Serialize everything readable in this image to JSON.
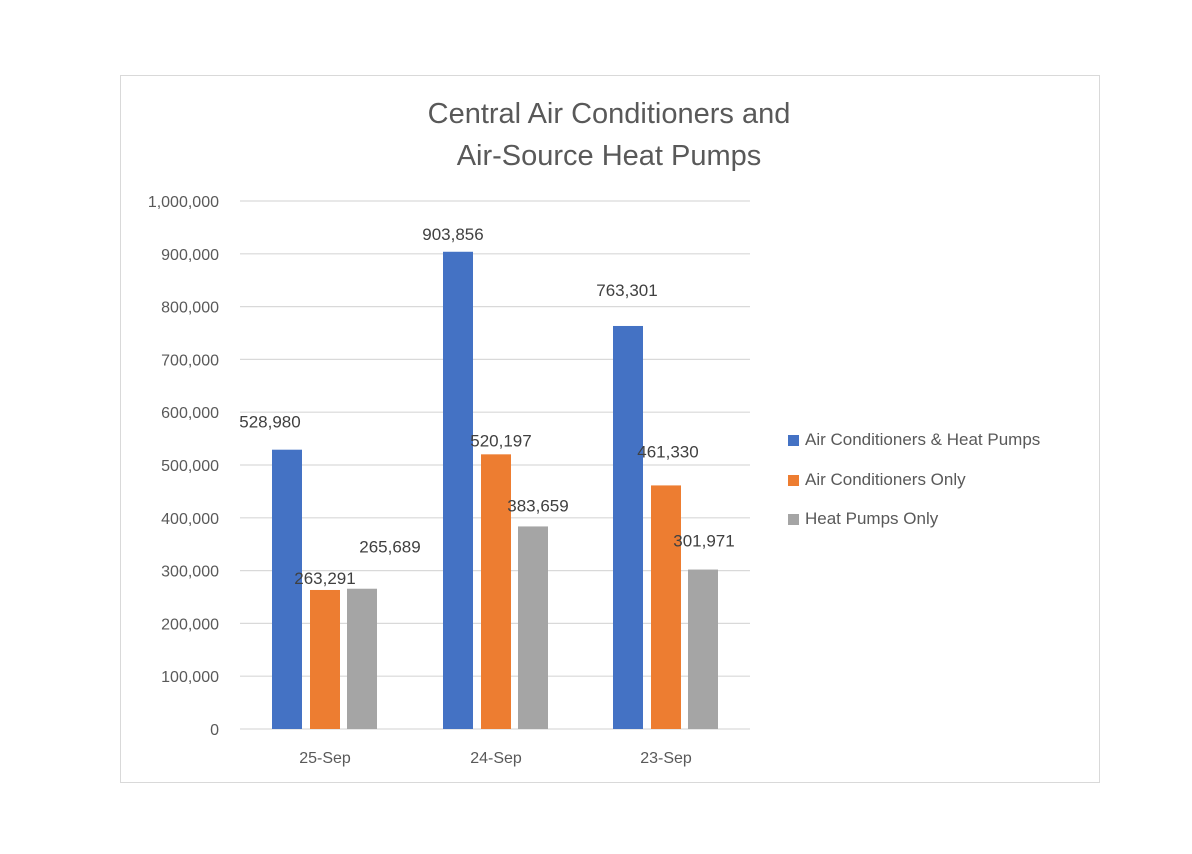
{
  "chart_data": {
    "type": "bar",
    "title": [
      "Central Air Conditioners and",
      "Air-Source Heat Pumps"
    ],
    "xlabel": "",
    "ylabel": "",
    "categories": [
      "25-Sep",
      "24-Sep",
      "23-Sep"
    ],
    "series": [
      {
        "name": "Air Conditioners & Heat Pumps",
        "color": "#4472c4",
        "values": [
          528980,
          903856,
          763301
        ],
        "labels": [
          "528,980",
          "903,856",
          "763,301"
        ]
      },
      {
        "name": "Air Conditioners Only",
        "color": "#ed7d31",
        "values": [
          263291,
          520197,
          461330
        ],
        "labels": [
          "263,291",
          "520,197",
          "461,330"
        ]
      },
      {
        "name": "Heat Pumps Only",
        "color": "#a5a5a5",
        "values": [
          265689,
          383659,
          301971
        ],
        "labels": [
          "265,689",
          "383,659",
          "301,971"
        ]
      }
    ],
    "ylim": [
      0,
      1000000
    ],
    "yticks": [
      "0",
      "100,000",
      "200,000",
      "300,000",
      "400,000",
      "500,000",
      "600,000",
      "700,000",
      "800,000",
      "900,000",
      "1,000,000"
    ],
    "grid": true,
    "legend": "right"
  }
}
